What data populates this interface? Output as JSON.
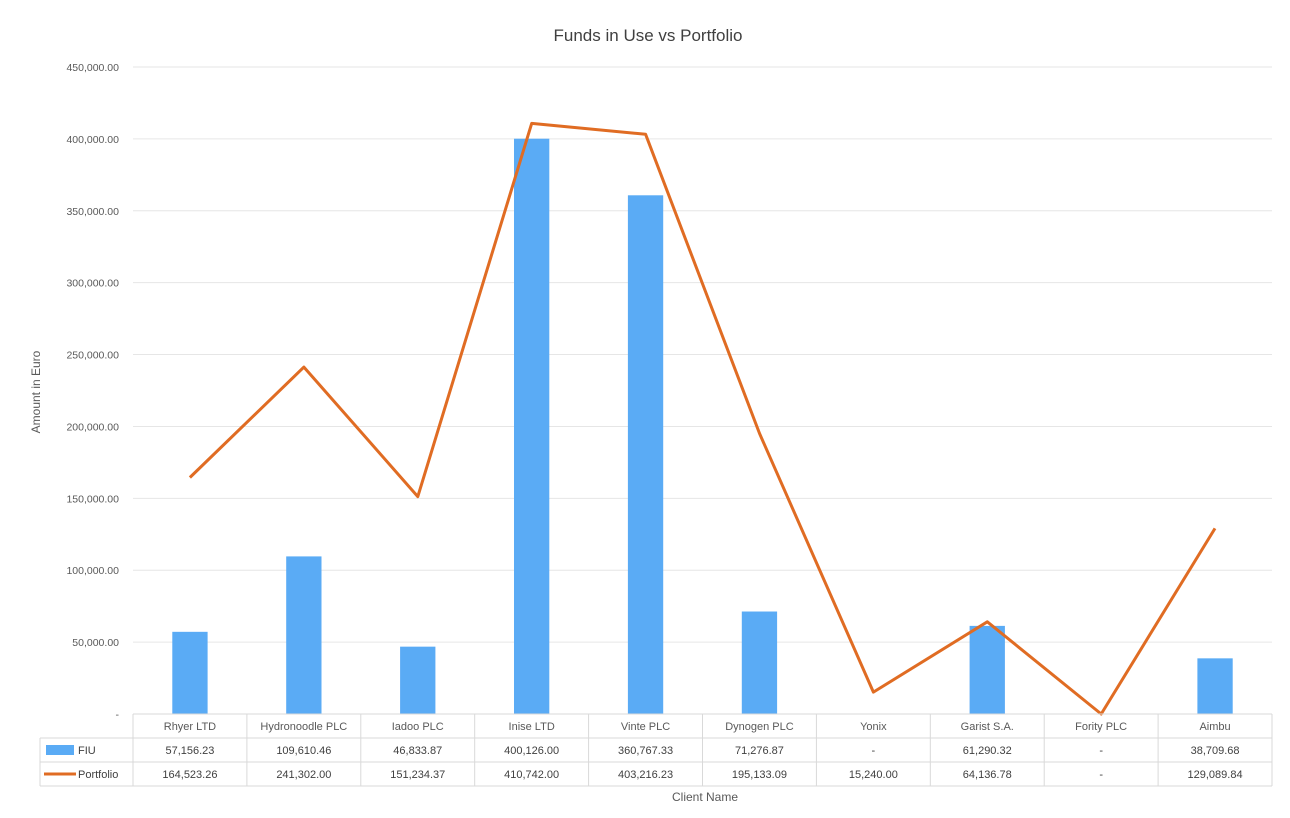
{
  "chart_data": {
    "type": "bar",
    "title": "Funds in Use vs Portfolio",
    "xlabel": "Client Name",
    "ylabel": "Amount in Euro",
    "ylim": [
      0,
      450000
    ],
    "yticks": [
      0,
      50000,
      100000,
      150000,
      200000,
      250000,
      300000,
      350000,
      400000,
      450000
    ],
    "ytick_labels": [
      "-",
      "50,000.00",
      "100,000.00",
      "150,000.00",
      "200,000.00",
      "250,000.00",
      "300,000.00",
      "350,000.00",
      "400,000.00",
      "450,000.00"
    ],
    "grid": true,
    "legend": "data-table",
    "categories": [
      "Rhyer LTD",
      "Hydronoodle PLC",
      "Iadoo PLC",
      "Inise LTD",
      "Vinte PLC",
      "Dynogen PLC",
      "Yonix",
      "Garist S.A.",
      "Fority PLC",
      "Aimbu"
    ],
    "series": [
      {
        "name": "FIU",
        "type": "bar",
        "color": "#5aabf5",
        "values": [
          57156.23,
          109610.46,
          46833.87,
          400126.0,
          360767.33,
          71276.87,
          0,
          61290.32,
          0,
          38709.68
        ],
        "labels": [
          "57,156.23",
          "109,610.46",
          "46,833.87",
          "400,126.00",
          "360,767.33",
          "71,276.87",
          "-",
          "61,290.32",
          "-",
          "38,709.68"
        ]
      },
      {
        "name": "Portfolio",
        "type": "line",
        "color": "#e06c23",
        "values": [
          164523.26,
          241302.0,
          151234.37,
          410742.0,
          403216.23,
          195133.09,
          15240.0,
          64136.78,
          0,
          129089.84
        ],
        "labels": [
          "164,523.26",
          "241,302.00",
          "151,234.37",
          "410,742.00",
          "403,216.23",
          "195,133.09",
          "15,240.00",
          "64,136.78",
          "-",
          "129,089.84"
        ]
      }
    ]
  }
}
